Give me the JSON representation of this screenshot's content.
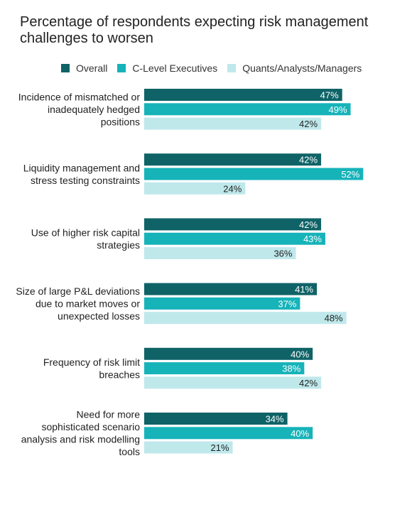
{
  "chart_data": {
    "type": "bar",
    "orientation": "horizontal",
    "title": "Percentage of respondents expecting risk management challenges to worsen",
    "legend_position": "top",
    "grid": false,
    "xlim": [
      0,
      60
    ],
    "categories": [
      [
        "Incidence of mismatched or",
        "inadequately hedged",
        "positions"
      ],
      [
        "Liquidity management and",
        "stress testing constraints"
      ],
      [
        "Use of higher risk capital",
        "strategies"
      ],
      [
        "Size of large P&L deviations",
        "due to market moves or",
        "unexpected losses"
      ],
      [
        "Frequency of risk limit",
        "breaches"
      ],
      [
        "Need for more",
        "sophisticated scenario",
        "analysis and risk modelling",
        "tools"
      ]
    ],
    "series": [
      {
        "name": "Overall",
        "color": "#0f6367",
        "label_color": "#ffffff",
        "values": [
          47,
          42,
          42,
          41,
          40,
          34
        ]
      },
      {
        "name": "C-Level Executives",
        "color": "#16b3b9",
        "label_color": "#ffffff",
        "values": [
          49,
          52,
          43,
          37,
          38,
          40
        ]
      },
      {
        "name": "Quants/Analysts/Managers",
        "color": "#bfe8eb",
        "label_color": "#222222",
        "values": [
          42,
          24,
          36,
          48,
          42,
          21
        ]
      }
    ],
    "value_suffix": "%"
  }
}
